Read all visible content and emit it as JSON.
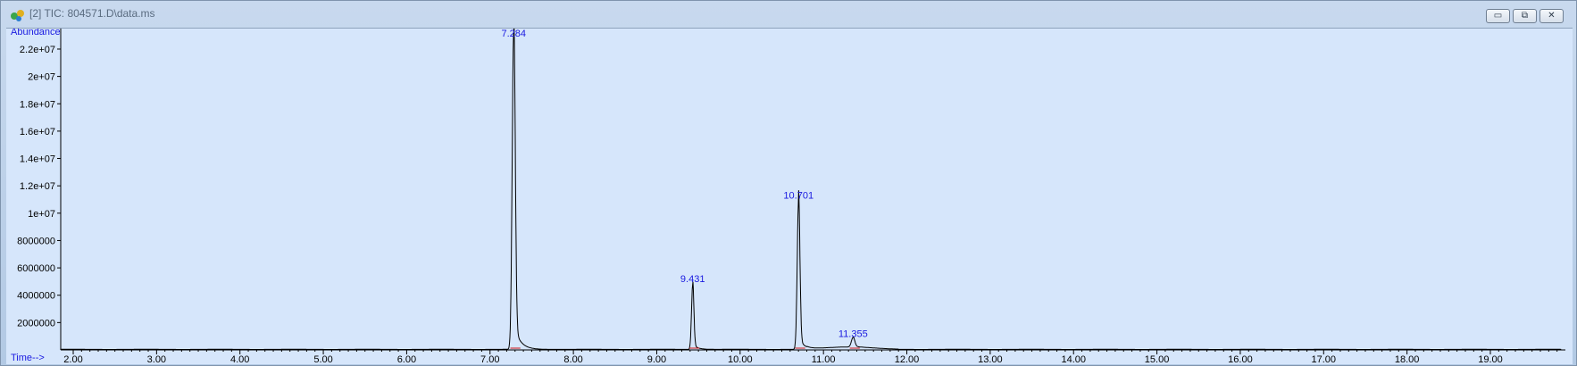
{
  "window": {
    "title": "[2] TIC: 804571.D\\data.ms",
    "controls": {
      "minimize": "▭",
      "restore": "⧉",
      "close": "✕"
    },
    "icon": "chromatogram-app-icon"
  },
  "chart_data": {
    "type": "line",
    "ylabel": "Abundance",
    "xlabel": "Time-->",
    "xlim": [
      1.85,
      19.9
    ],
    "ylim": [
      0,
      23500000
    ],
    "x_ticks": [
      "2.00",
      "3.00",
      "4.00",
      "5.00",
      "6.00",
      "7.00",
      "8.00",
      "9.00",
      "10.00",
      "11.00",
      "12.00",
      "13.00",
      "14.00",
      "15.00",
      "16.00",
      "17.00",
      "18.00",
      "19.00"
    ],
    "y_ticks": [
      "2000000",
      "4000000",
      "6000000",
      "8000000",
      "1e+07",
      "1.2e+07",
      "1.4e+07",
      "1.6e+07",
      "1.8e+07",
      "2e+07",
      "2.2e+07"
    ],
    "y_tick_values": [
      2000000,
      4000000,
      6000000,
      8000000,
      10000000,
      12000000,
      14000000,
      16000000,
      18000000,
      20000000,
      22000000
    ],
    "peaks": [
      {
        "rt": 7.284,
        "label": "7.284",
        "height": 23200000
      },
      {
        "rt": 9.431,
        "label": "9.431",
        "height": 4700000
      },
      {
        "rt": 10.701,
        "label": "10.701",
        "height": 10800000
      },
      {
        "rt": 11.355,
        "label": "11.355",
        "height": 700000
      }
    ],
    "colors": {
      "trace": "#000000",
      "labels": "#1a1ae0",
      "baseline": "#d01010",
      "background": "#d6e6fb"
    }
  }
}
